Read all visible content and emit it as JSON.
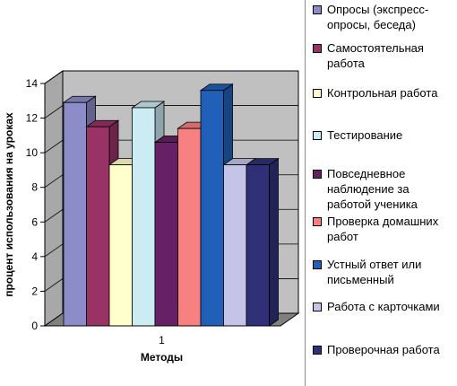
{
  "chart_data": {
    "type": "bar",
    "categories": [
      "1"
    ],
    "xlabel": "Методы",
    "ylabel": "процент использования на уроках",
    "ylim": [
      0,
      14
    ],
    "yticks": [
      0,
      2,
      4,
      6,
      8,
      10,
      12,
      14
    ],
    "legend_position": "right",
    "series": [
      {
        "name": "Опросы (экспресс-опросы, беседа)",
        "values": [
          12.9
        ],
        "color": "#8c8cc8"
      },
      {
        "name": "Самостоятельная работа",
        "values": [
          11.5
        ],
        "color": "#993366"
      },
      {
        "name": "Контрольная работа",
        "values": [
          9.3
        ],
        "color": "#ffffcc"
      },
      {
        "name": "Тестирование",
        "values": [
          12.6
        ],
        "color": "#ccecf4"
      },
      {
        "name": "Повседневное наблюдение за работой ученика",
        "values": [
          10.6
        ],
        "color": "#662066"
      },
      {
        "name": "Проверка домашних работ",
        "values": [
          11.4
        ],
        "color": "#f88080"
      },
      {
        "name": "Устный ответ или письменный",
        "values": [
          13.6
        ],
        "color": "#2060b8"
      },
      {
        "name": "Работа с карточками",
        "values": [
          9.3
        ],
        "color": "#c4c4e8"
      },
      {
        "name": "Проверочная работа",
        "values": [
          9.3
        ],
        "color": "#303078"
      }
    ]
  }
}
